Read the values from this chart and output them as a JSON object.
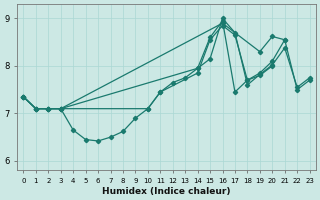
{
  "xlabel": "Humidex (Indice chaleur)",
  "background_color": "#cce8e4",
  "line_color": "#1a7a6e",
  "grid_color": "#aad8d4",
  "xlim": [
    -0.5,
    23.5
  ],
  "ylim": [
    5.8,
    9.3
  ],
  "xticks": [
    0,
    1,
    2,
    3,
    4,
    5,
    6,
    7,
    8,
    9,
    10,
    11,
    12,
    13,
    14,
    15,
    16,
    17,
    18,
    19,
    20,
    21,
    22,
    23
  ],
  "yticks": [
    6,
    7,
    8,
    9
  ],
  "series": [
    {
      "x": [
        0,
        1,
        2,
        3,
        4,
        5,
        6,
        7,
        8,
        9,
        10,
        11,
        12,
        13,
        14,
        15,
        16,
        17,
        18,
        19,
        20,
        21,
        22,
        23
      ],
      "y": [
        7.35,
        7.1,
        7.1,
        7.1,
        6.65,
        6.45,
        6.42,
        6.5,
        6.62,
        6.9,
        7.1,
        7.45,
        7.65,
        7.75,
        7.95,
        8.6,
        8.95,
        7.45,
        7.7,
        7.85,
        8.1,
        8.55,
        7.5,
        7.7
      ]
    },
    {
      "x": [
        0,
        1,
        2,
        3,
        10,
        11,
        14,
        15,
        16,
        17,
        18,
        19,
        20
      ],
      "y": [
        7.35,
        7.1,
        7.1,
        7.1,
        7.1,
        7.45,
        7.85,
        8.55,
        8.85,
        8.65,
        7.7,
        7.8,
        8.0
      ]
    },
    {
      "x": [
        0,
        1,
        2,
        3,
        14,
        15,
        16,
        17,
        18,
        19,
        20,
        21,
        22,
        23
      ],
      "y": [
        7.35,
        7.1,
        7.1,
        7.1,
        7.95,
        8.15,
        9.0,
        8.7,
        7.6,
        7.82,
        8.02,
        8.38,
        7.55,
        7.75
      ]
    },
    {
      "x": [
        0,
        1,
        2,
        3,
        16,
        19,
        20,
        21
      ],
      "y": [
        7.35,
        7.1,
        7.1,
        7.1,
        8.9,
        8.3,
        8.62,
        8.55
      ]
    }
  ],
  "marker": "D",
  "markersize": 2.2,
  "linewidth": 0.9
}
